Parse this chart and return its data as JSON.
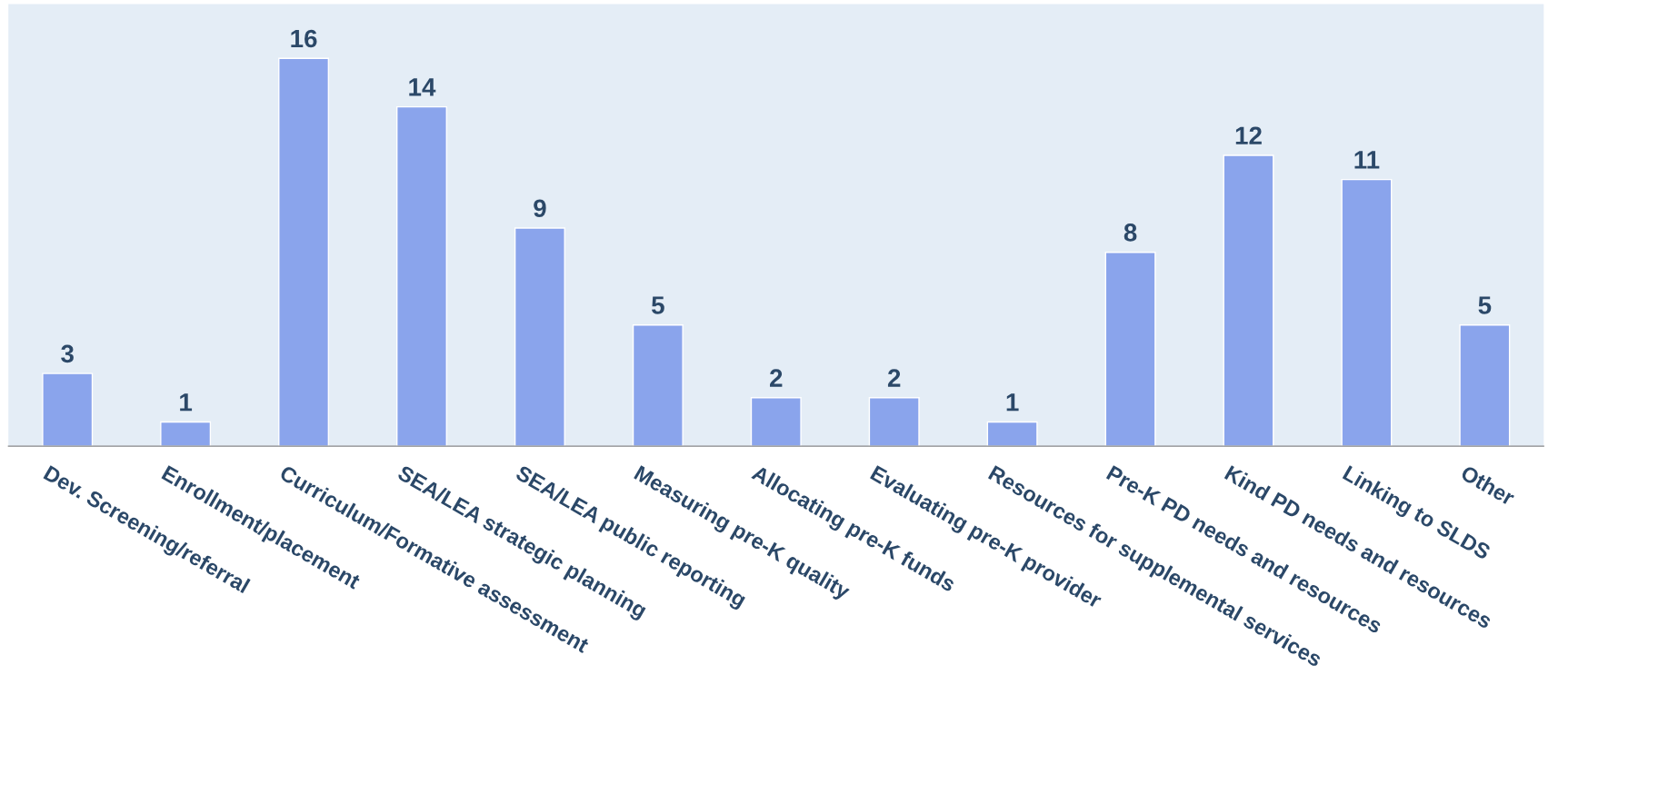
{
  "chart_data": {
    "type": "bar",
    "categories": [
      "Dev. Screening/referral",
      "Enrollment/placement",
      "Curriculum/Formative assessment",
      "SEA/LEA strategic planning",
      "SEA/LEA public reporting",
      "Measuring pre-K quality",
      "Allocating pre-K funds",
      "Evaluating pre-K provider",
      "Resources for supplemental services",
      "Pre-K PD needs and resources",
      "Kind PD needs and resources",
      "Linking to SLDS",
      "Other"
    ],
    "values": [
      3,
      1,
      16,
      14,
      9,
      5,
      2,
      2,
      1,
      8,
      12,
      11,
      5
    ],
    "color": "#8aa4ec",
    "data_labels": true,
    "grid": false,
    "legend": false
  }
}
